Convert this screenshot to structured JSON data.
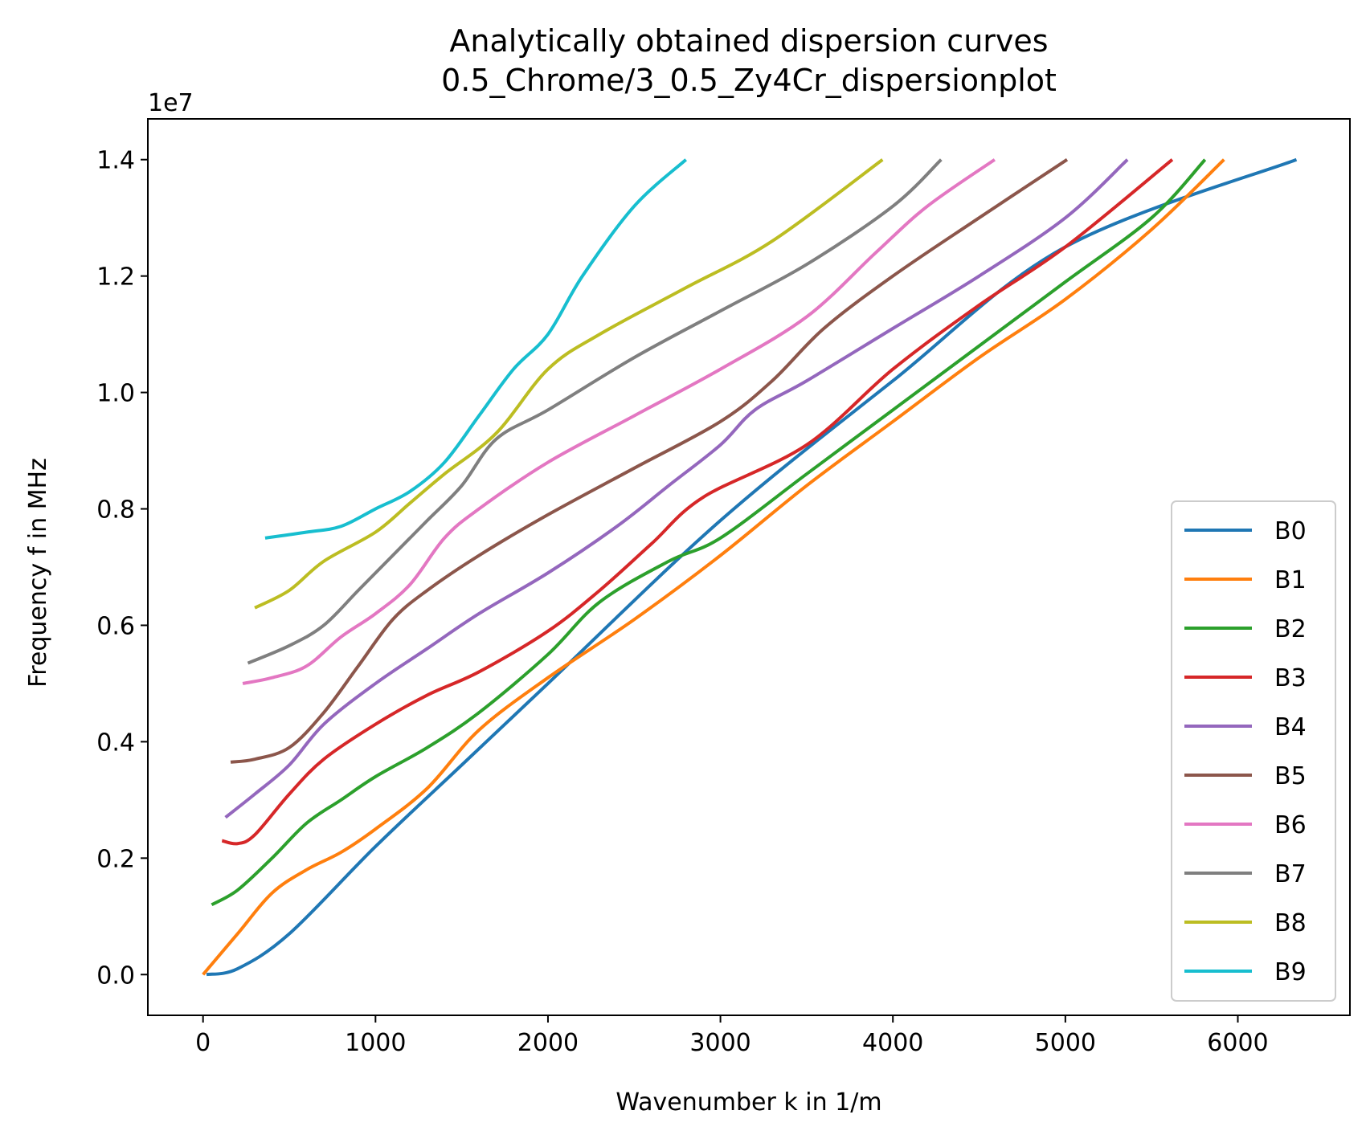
{
  "chart_data": {
    "type": "line",
    "title": "Analytically obtained dispersion curves\n0.5_Chrome/3_0.5_Zy4Cr_dispersionplot",
    "title_lines": [
      "Analytically obtained dispersion curves",
      "0.5_Chrome/3_0.5_Zy4Cr_dispersionplot"
    ],
    "xlabel": "Wavenumber k in 1/m",
    "ylabel": "Frequency f in MHz",
    "y_offset_label": "1e7",
    "xlim": [
      -320,
      6650
    ],
    "ylim": [
      -0.07,
      1.47
    ],
    "y_units_note": "1e7",
    "xticks": [
      0,
      1000,
      2000,
      3000,
      4000,
      5000,
      6000
    ],
    "xtick_labels": [
      "0",
      "1000",
      "2000",
      "3000",
      "4000",
      "5000",
      "6000"
    ],
    "yticks": [
      0.0,
      0.2,
      0.4,
      0.6,
      0.8,
      1.0,
      1.2,
      1.4
    ],
    "ytick_labels": [
      "0.0",
      "0.2",
      "0.4",
      "0.6",
      "0.8",
      "1.0",
      "1.2",
      "1.4"
    ],
    "grid": false,
    "legend_position": "lower-right",
    "series": [
      {
        "name": "B0",
        "color": "#1f77b4",
        "points": [
          [
            20,
            0.0
          ],
          [
            200,
            0.01
          ],
          [
            500,
            0.07
          ],
          [
            1000,
            0.22
          ],
          [
            1500,
            0.36
          ],
          [
            2000,
            0.5
          ],
          [
            3000,
            0.78
          ],
          [
            4000,
            1.02
          ],
          [
            5000,
            1.25
          ],
          [
            6340,
            1.4
          ]
        ]
      },
      {
        "name": "B1",
        "color": "#ff7f0e",
        "points": [
          [
            0,
            0.0
          ],
          [
            200,
            0.07
          ],
          [
            400,
            0.14
          ],
          [
            600,
            0.18
          ],
          [
            800,
            0.21
          ],
          [
            1000,
            0.25
          ],
          [
            1300,
            0.32
          ],
          [
            1600,
            0.42
          ],
          [
            2000,
            0.51
          ],
          [
            2500,
            0.61
          ],
          [
            3000,
            0.72
          ],
          [
            3500,
            0.84
          ],
          [
            4000,
            0.95
          ],
          [
            4500,
            1.06
          ],
          [
            5000,
            1.16
          ],
          [
            5500,
            1.28
          ],
          [
            5920,
            1.4
          ]
        ]
      },
      {
        "name": "B2",
        "color": "#2ca02c",
        "points": [
          [
            50,
            0.12
          ],
          [
            200,
            0.145
          ],
          [
            400,
            0.2
          ],
          [
            600,
            0.26
          ],
          [
            800,
            0.3
          ],
          [
            1000,
            0.34
          ],
          [
            1300,
            0.39
          ],
          [
            1600,
            0.45
          ],
          [
            2000,
            0.55
          ],
          [
            2300,
            0.64
          ],
          [
            2700,
            0.71
          ],
          [
            3000,
            0.75
          ],
          [
            3500,
            0.86
          ],
          [
            4000,
            0.97
          ],
          [
            4500,
            1.08
          ],
          [
            5000,
            1.19
          ],
          [
            5500,
            1.3
          ],
          [
            5810,
            1.4
          ]
        ]
      },
      {
        "name": "B3",
        "color": "#d62728",
        "points": [
          [
            110,
            0.23
          ],
          [
            200,
            0.225
          ],
          [
            300,
            0.24
          ],
          [
            500,
            0.31
          ],
          [
            700,
            0.37
          ],
          [
            1000,
            0.43
          ],
          [
            1300,
            0.48
          ],
          [
            1600,
            0.52
          ],
          [
            2000,
            0.59
          ],
          [
            2300,
            0.66
          ],
          [
            2600,
            0.74
          ],
          [
            2900,
            0.82
          ],
          [
            3500,
            0.91
          ],
          [
            4000,
            1.04
          ],
          [
            4500,
            1.15
          ],
          [
            5000,
            1.25
          ],
          [
            5620,
            1.4
          ]
        ]
      },
      {
        "name": "B4",
        "color": "#9467bd",
        "points": [
          [
            130,
            0.27
          ],
          [
            300,
            0.31
          ],
          [
            500,
            0.36
          ],
          [
            700,
            0.43
          ],
          [
            1000,
            0.5
          ],
          [
            1300,
            0.56
          ],
          [
            1600,
            0.62
          ],
          [
            2000,
            0.69
          ],
          [
            2400,
            0.77
          ],
          [
            2700,
            0.84
          ],
          [
            3000,
            0.91
          ],
          [
            3200,
            0.97
          ],
          [
            3500,
            1.02
          ],
          [
            4000,
            1.11
          ],
          [
            4500,
            1.2
          ],
          [
            5000,
            1.3
          ],
          [
            5360,
            1.4
          ]
        ]
      },
      {
        "name": "B5",
        "color": "#8c564b",
        "points": [
          [
            160,
            0.365
          ],
          [
            300,
            0.37
          ],
          [
            500,
            0.39
          ],
          [
            700,
            0.45
          ],
          [
            900,
            0.53
          ],
          [
            1100,
            0.61
          ],
          [
            1300,
            0.66
          ],
          [
            1600,
            0.72
          ],
          [
            2000,
            0.79
          ],
          [
            2500,
            0.87
          ],
          [
            3000,
            0.95
          ],
          [
            3300,
            1.02
          ],
          [
            3600,
            1.11
          ],
          [
            4000,
            1.2
          ],
          [
            4500,
            1.3
          ],
          [
            5010,
            1.4
          ]
        ]
      },
      {
        "name": "B6",
        "color": "#e377c2",
        "points": [
          [
            230,
            0.5
          ],
          [
            400,
            0.51
          ],
          [
            600,
            0.53
          ],
          [
            800,
            0.58
          ],
          [
            1000,
            0.62
          ],
          [
            1200,
            0.67
          ],
          [
            1400,
            0.75
          ],
          [
            1600,
            0.8
          ],
          [
            2000,
            0.88
          ],
          [
            2500,
            0.96
          ],
          [
            3000,
            1.04
          ],
          [
            3500,
            1.13
          ],
          [
            3900,
            1.24
          ],
          [
            4200,
            1.32
          ],
          [
            4590,
            1.4
          ]
        ]
      },
      {
        "name": "B7",
        "color": "#7f7f7f",
        "points": [
          [
            260,
            0.535
          ],
          [
            500,
            0.565
          ],
          [
            700,
            0.6
          ],
          [
            900,
            0.66
          ],
          [
            1100,
            0.72
          ],
          [
            1300,
            0.78
          ],
          [
            1500,
            0.84
          ],
          [
            1700,
            0.92
          ],
          [
            2000,
            0.97
          ],
          [
            2500,
            1.06
          ],
          [
            3000,
            1.14
          ],
          [
            3500,
            1.22
          ],
          [
            4000,
            1.32
          ],
          [
            4280,
            1.4
          ]
        ]
      },
      {
        "name": "B8",
        "color": "#bcbd22",
        "points": [
          [
            300,
            0.63
          ],
          [
            500,
            0.66
          ],
          [
            700,
            0.71
          ],
          [
            1000,
            0.76
          ],
          [
            1200,
            0.81
          ],
          [
            1400,
            0.86
          ],
          [
            1700,
            0.93
          ],
          [
            2000,
            1.04
          ],
          [
            2300,
            1.1
          ],
          [
            2800,
            1.18
          ],
          [
            3300,
            1.26
          ],
          [
            3940,
            1.4
          ]
        ]
      },
      {
        "name": "B9",
        "color": "#17becf",
        "points": [
          [
            360,
            0.75
          ],
          [
            600,
            0.76
          ],
          [
            800,
            0.77
          ],
          [
            1000,
            0.8
          ],
          [
            1200,
            0.83
          ],
          [
            1400,
            0.88
          ],
          [
            1600,
            0.96
          ],
          [
            1800,
            1.04
          ],
          [
            2000,
            1.1
          ],
          [
            2200,
            1.2
          ],
          [
            2500,
            1.32
          ],
          [
            2800,
            1.4
          ]
        ]
      }
    ]
  }
}
